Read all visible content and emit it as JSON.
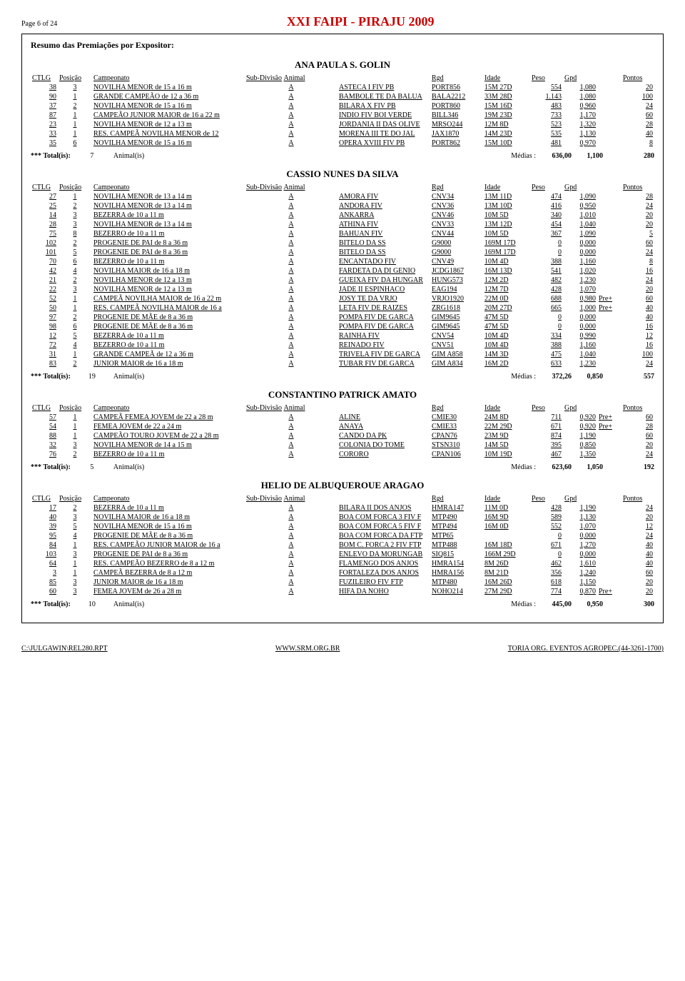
{
  "header": {
    "page_label": "Page 6 of 24",
    "event_title": "XXI FAIPI - PIRAJU 2009",
    "resumo_title": "Resumo das Premiações por Expositor:"
  },
  "columns": {
    "ctlg": "CTLG",
    "posicao": "Posição",
    "campeonato": "Campeonato",
    "subdiv": "Sub-Divisão",
    "animal": "Animal",
    "rgd": "Rgd",
    "idade": "Idade",
    "peso": "Peso",
    "gpd": "Gpd",
    "pontos": "Pontos"
  },
  "totals_labels": {
    "total": "*** Total(is):",
    "animal": "Animal(is)",
    "medias": "Médias :"
  },
  "sections": [
    {
      "name": "ANA PAULA S. GOLIN",
      "rows": [
        {
          "ctlg": "38",
          "pos": "3",
          "camp": "NOVILHA MENOR de 15 a 16 m",
          "sub": "A",
          "anim": "ASTECA I FIV PB",
          "rgd": "PORT856",
          "idade": "15M 27D",
          "peso": "554",
          "gpd": "1,080",
          "pre": "",
          "pts": "20"
        },
        {
          "ctlg": "90",
          "pos": "1",
          "camp": "GRANDE CAMPEÃO de 12 a 36 m",
          "sub": "A",
          "anim": "BAMBOLE TE DA BALUA",
          "rgd": "BALA2212",
          "idade": "33M 28D",
          "peso": "1.143",
          "gpd": "1,080",
          "pre": "",
          "pts": "100"
        },
        {
          "ctlg": "37",
          "pos": "2",
          "camp": "NOVILHA MENOR de 15 a 16 m",
          "sub": "A",
          "anim": "BILARA X FIV PB",
          "rgd": "PORT860",
          "idade": "15M 16D",
          "peso": "483",
          "gpd": "0,960",
          "pre": "",
          "pts": "24"
        },
        {
          "ctlg": "87",
          "pos": "1",
          "camp": "CAMPEÃO JUNIOR MAIOR de 16 a 22 m",
          "sub": "A",
          "anim": "INDIO FIV BOI VERDE",
          "rgd": "BILL346",
          "idade": "19M 23D",
          "peso": "733",
          "gpd": "1,170",
          "pre": "",
          "pts": "60"
        },
        {
          "ctlg": "23",
          "pos": "1",
          "camp": "NOVILHA MENOR de 12 a 13 m",
          "sub": "A",
          "anim": "JORDANIA II DAS OLIVE",
          "rgd": "MRSO244",
          "idade": "12M  8D",
          "peso": "523",
          "gpd": "1,320",
          "pre": "",
          "pts": "28"
        },
        {
          "ctlg": "33",
          "pos": "1",
          "camp": "RES. CAMPEÃ NOVILHA MENOR de 12",
          "sub": "A",
          "anim": "MORENA III TE DO JAL",
          "rgd": "JAX1870",
          "idade": "14M 23D",
          "peso": "535",
          "gpd": "1,130",
          "pre": "",
          "pts": "40"
        },
        {
          "ctlg": "35",
          "pos": "6",
          "camp": "NOVILHA MENOR de 15 a 16 m",
          "sub": "A",
          "anim": "OPERA XVIII FIV PB",
          "rgd": "PORT862",
          "idade": "15M 10D",
          "peso": "481",
          "gpd": "0,970",
          "pre": "",
          "pts": "8"
        }
      ],
      "total_count": "7",
      "media_peso": "636,00",
      "media_gpd": "1,100",
      "media_pts": "280"
    },
    {
      "name": "CASSIO NUNES DA SILVA",
      "rows": [
        {
          "ctlg": "27",
          "pos": "1",
          "camp": "NOVILHA MENOR de 13 a 14 m",
          "sub": "A",
          "anim": "AMORA FIV",
          "rgd": "CNV34",
          "idade": "13M 11D",
          "peso": "474",
          "gpd": "1,090",
          "pre": "",
          "pts": "28"
        },
        {
          "ctlg": "25",
          "pos": "2",
          "camp": "NOVILHA MENOR de 13 a 14 m",
          "sub": "A",
          "anim": "ANDORA FIV",
          "rgd": "CNV36",
          "idade": "13M 10D",
          "peso": "416",
          "gpd": "0,950",
          "pre": "",
          "pts": "24"
        },
        {
          "ctlg": "14",
          "pos": "3",
          "camp": "BEZERRA de 10 a 11 m",
          "sub": "A",
          "anim": "ANKARRA",
          "rgd": "CNV46",
          "idade": "10M  5D",
          "peso": "340",
          "gpd": "1,010",
          "pre": "",
          "pts": "20"
        },
        {
          "ctlg": "28",
          "pos": "3",
          "camp": "NOVILHA MENOR de 13 a 14 m",
          "sub": "A",
          "anim": "ATHINA FIV",
          "rgd": "CNV33",
          "idade": "13M 12D",
          "peso": "454",
          "gpd": "1,040",
          "pre": "",
          "pts": "20"
        },
        {
          "ctlg": "75",
          "pos": "8",
          "camp": "BEZERRO de 10 a 11 m",
          "sub": "A",
          "anim": "BAHUAN FIV",
          "rgd": "CNV44",
          "idade": "10M  5D",
          "peso": "367",
          "gpd": "1,090",
          "pre": "",
          "pts": "5"
        },
        {
          "ctlg": "102",
          "pos": "2",
          "camp": "PROGENIE DE PAI de 8 a 36 m",
          "sub": "A",
          "anim": "BITELO DA SS",
          "rgd": "G9000",
          "idade": "169M 17D",
          "peso": "0",
          "gpd": "0,000",
          "pre": "",
          "pts": "60"
        },
        {
          "ctlg": "101",
          "pos": "5",
          "camp": "PROGENIE DE PAI de 8 a 36 m",
          "sub": "A",
          "anim": "BITELO DA SS",
          "rgd": "G9000",
          "idade": "169M 17D",
          "peso": "0",
          "gpd": "0,000",
          "pre": "",
          "pts": "24"
        },
        {
          "ctlg": "70",
          "pos": "6",
          "camp": "BEZERRO de 10 a 11 m",
          "sub": "A",
          "anim": "ENCANTADO FIV",
          "rgd": "CNV49",
          "idade": "10M  4D",
          "peso": "388",
          "gpd": "1,160",
          "pre": "",
          "pts": "8"
        },
        {
          "ctlg": "42",
          "pos": "4",
          "camp": "NOVILHA MAIOR de 16 a 18 m",
          "sub": "A",
          "anim": "FARDETA DA DI GENIO",
          "rgd": "JCDG1867",
          "idade": "16M 13D",
          "peso": "541",
          "gpd": "1,020",
          "pre": "",
          "pts": "16"
        },
        {
          "ctlg": "21",
          "pos": "2",
          "camp": "NOVILHA MENOR de 12 a 13 m",
          "sub": "A",
          "anim": "GUEIXA FIV DA HUNGAR",
          "rgd": "HUNG573",
          "idade": "12M  2D",
          "peso": "482",
          "gpd": "1,230",
          "pre": "",
          "pts": "24"
        },
        {
          "ctlg": "22",
          "pos": "3",
          "camp": "NOVILHA MENOR de 12 a 13 m",
          "sub": "A",
          "anim": "JADE II ESPINHACO",
          "rgd": "EAG194",
          "idade": "12M  7D",
          "peso": "428",
          "gpd": "1,070",
          "pre": "",
          "pts": "20"
        },
        {
          "ctlg": "52",
          "pos": "1",
          "camp": "CAMPEÃ NOVILHA MAIOR de 16 a 22 m",
          "sub": "A",
          "anim": "JOSY TE DA VRJO",
          "rgd": "VRJO1920",
          "idade": "22M  0D",
          "peso": "688",
          "gpd": "0,980",
          "pre": "Pre+",
          "pts": "60"
        },
        {
          "ctlg": "50",
          "pos": "1",
          "camp": "RES. CAMPEÃ NOVILHA MAIOR de 16 a",
          "sub": "A",
          "anim": "LETA FIV DE RAIZES",
          "rgd": "ZRG1618",
          "idade": "20M 27D",
          "peso": "665",
          "gpd": "1,000",
          "pre": "Pre+",
          "pts": "40"
        },
        {
          "ctlg": "97",
          "pos": "2",
          "camp": "PROGENIE DE MÃE de 8 a 36 m",
          "sub": "A",
          "anim": "POMPA FIV DE GARCA",
          "rgd": "GIM9645",
          "idade": "47M  5D",
          "peso": "0",
          "gpd": "0,000",
          "pre": "",
          "pts": "40"
        },
        {
          "ctlg": "98",
          "pos": "6",
          "camp": "PROGENIE DE MÃE de 8 a 36 m",
          "sub": "A",
          "anim": "POMPA FIV DE GARCA",
          "rgd": "GIM9645",
          "idade": "47M  5D",
          "peso": "0",
          "gpd": "0,000",
          "pre": "",
          "pts": "16"
        },
        {
          "ctlg": "12",
          "pos": "5",
          "camp": "BEZERRA de 10 a 11 m",
          "sub": "A",
          "anim": "RAINHA FIV",
          "rgd": "CNV54",
          "idade": "10M  4D",
          "peso": "334",
          "gpd": "0,990",
          "pre": "",
          "pts": "12"
        },
        {
          "ctlg": "72",
          "pos": "4",
          "camp": "BEZERRO de 10 a 11 m",
          "sub": "A",
          "anim": "REINADO FIV",
          "rgd": "CNV51",
          "idade": "10M  4D",
          "peso": "388",
          "gpd": "1,160",
          "pre": "",
          "pts": "16"
        },
        {
          "ctlg": "31",
          "pos": "1",
          "camp": "GRANDE CAMPEÃ de 12 a 36 m",
          "sub": "A",
          "anim": "TRIVELA FIV DE GARCA",
          "rgd": "GIM A858",
          "idade": "14M  3D",
          "peso": "475",
          "gpd": "1,040",
          "pre": "",
          "pts": "100"
        },
        {
          "ctlg": "83",
          "pos": "2",
          "camp": "JUNIOR MAIOR de 16 a 18 m",
          "sub": "A",
          "anim": "TUBAR FIV DE GARCA",
          "rgd": "GIM A834",
          "idade": "16M  2D",
          "peso": "633",
          "gpd": "1,230",
          "pre": "",
          "pts": "24"
        }
      ],
      "total_count": "19",
      "media_peso": "372,26",
      "media_gpd": "0,850",
      "media_pts": "557"
    },
    {
      "name": "CONSTANTINO PATRICK AMATO",
      "rows": [
        {
          "ctlg": "57",
          "pos": "1",
          "camp": "CAMPEÃ FEMEA JOVEM de 22 a 28 m",
          "sub": "A",
          "anim": "ALINE",
          "rgd": "CMIE30",
          "idade": "24M  8D",
          "peso": "711",
          "gpd": "0,920",
          "pre": "Pre+",
          "pts": "60"
        },
        {
          "ctlg": "54",
          "pos": "1",
          "camp": "FEMEA JOVEM de 22 a 24 m",
          "sub": "A",
          "anim": "ANAYA",
          "rgd": "CMIE33",
          "idade": "22M 29D",
          "peso": "671",
          "gpd": "0,920",
          "pre": "Pre+",
          "pts": "28"
        },
        {
          "ctlg": "88",
          "pos": "1",
          "camp": "CAMPEÃO TOURO JOVEM de 22 a 28 m",
          "sub": "A",
          "anim": "CANDO DA PK",
          "rgd": "CPAN76",
          "idade": "23M  9D",
          "peso": "874",
          "gpd": "1,190",
          "pre": "",
          "pts": "60"
        },
        {
          "ctlg": "32",
          "pos": "3",
          "camp": "NOVILHA MENOR de 14 a 15 m",
          "sub": "A",
          "anim": "COLONIA DO TOME",
          "rgd": "STSN310",
          "idade": "14M  5D",
          "peso": "395",
          "gpd": "0,850",
          "pre": "",
          "pts": "20"
        },
        {
          "ctlg": "76",
          "pos": "2",
          "camp": "BEZERRO de 10 a 11 m",
          "sub": "A",
          "anim": "CORORO",
          "rgd": "CPAN106",
          "idade": "10M 19D",
          "peso": "467",
          "gpd": "1,350",
          "pre": "",
          "pts": "24"
        }
      ],
      "total_count": "5",
      "media_peso": "623,60",
      "media_gpd": "1,050",
      "media_pts": "192"
    },
    {
      "name": "HELIO DE ALBUQUEROUE ARAGAO",
      "rows": [
        {
          "ctlg": "17",
          "pos": "2",
          "camp": "BEZERRA de 10 a 11 m",
          "sub": "A",
          "anim": "BILARA II DOS ANJOS",
          "rgd": "HMRA147",
          "idade": "11M  0D",
          "peso": "428",
          "gpd": "1,190",
          "pre": "",
          "pts": "24"
        },
        {
          "ctlg": "40",
          "pos": "3",
          "camp": "NOVILHA MAIOR de 16 a 18 m",
          "sub": "A",
          "anim": "BOA COM FORCA 3 FIV F",
          "rgd": "MTP490",
          "idade": "16M  9D",
          "peso": "589",
          "gpd": "1,130",
          "pre": "",
          "pts": "20"
        },
        {
          "ctlg": "39",
          "pos": "5",
          "camp": "NOVILHA MENOR de 15 a 16 m",
          "sub": "A",
          "anim": "BOA COM FORCA 5 FIV F",
          "rgd": "MTP494",
          "idade": "16M  0D",
          "peso": "552",
          "gpd": "1,070",
          "pre": "",
          "pts": "12"
        },
        {
          "ctlg": "95",
          "pos": "4",
          "camp": "PROGENIE DE MÃE de 8 a 36 m",
          "sub": "A",
          "anim": "BOA COM FORCA DA FTP",
          "rgd": "MTP65",
          "idade": "",
          "peso": "0",
          "gpd": "0,000",
          "pre": "",
          "pts": "24"
        },
        {
          "ctlg": "84",
          "pos": "1",
          "camp": "RES. CAMPEÃO JUNIOR MAIOR de 16 a",
          "sub": "A",
          "anim": "BOM C. FORCA 2 FIV FTP",
          "rgd": "MTP488",
          "idade": "16M 18D",
          "peso": "671",
          "gpd": "1,270",
          "pre": "",
          "pts": "40"
        },
        {
          "ctlg": "103",
          "pos": "3",
          "camp": "PROGENIE DE PAI de 8 a 36 m",
          "sub": "A",
          "anim": "ENLEVO DA MORUNGAB",
          "rgd": "SIQ815",
          "idade": "166M 29D",
          "peso": "0",
          "gpd": "0,000",
          "pre": "",
          "pts": "40"
        },
        {
          "ctlg": "64",
          "pos": "1",
          "camp": "RES. CAMPEÃO BEZERRO de 8 a 12 m",
          "sub": "A",
          "anim": "FLAMENGO DOS ANJOS",
          "rgd": "HMRA154",
          "idade": "8M 26D",
          "peso": "462",
          "gpd": "1,610",
          "pre": "",
          "pts": "40"
        },
        {
          "ctlg": "3",
          "pos": "1",
          "camp": "CAMPEÃ BEZERRA de 8 a 12 m",
          "sub": "A",
          "anim": "FORTALEZA DOS ANJOS",
          "rgd": "HMRA156",
          "idade": "8M 21D",
          "peso": "356",
          "gpd": "1,240",
          "pre": "",
          "pts": "60"
        },
        {
          "ctlg": "85",
          "pos": "3",
          "camp": "JUNIOR MAIOR de 16 a 18 m",
          "sub": "A",
          "anim": "FUZILEIRO FIV FTP",
          "rgd": "MTP480",
          "idade": "16M 26D",
          "peso": "618",
          "gpd": "1,150",
          "pre": "",
          "pts": "20"
        },
        {
          "ctlg": "60",
          "pos": "3",
          "camp": "FEMEA JOVEM de 26 a 28 m",
          "sub": "A",
          "anim": "HIFA DA NOHO",
          "rgd": "NOHO214",
          "idade": "27M 29D",
          "peso": "774",
          "gpd": "0,870",
          "pre": "Pre+",
          "pts": "20"
        }
      ],
      "total_count": "10",
      "media_peso": "445,00",
      "media_gpd": "0,950",
      "media_pts": "300"
    }
  ],
  "footer": {
    "left": "C:\\JULGAWIN\\REL280.RPT",
    "center": "WWW.SRM.ORG.BR",
    "right": "TORIA ORG. EVENTOS AGROPEC.(44-3261-1700)"
  }
}
